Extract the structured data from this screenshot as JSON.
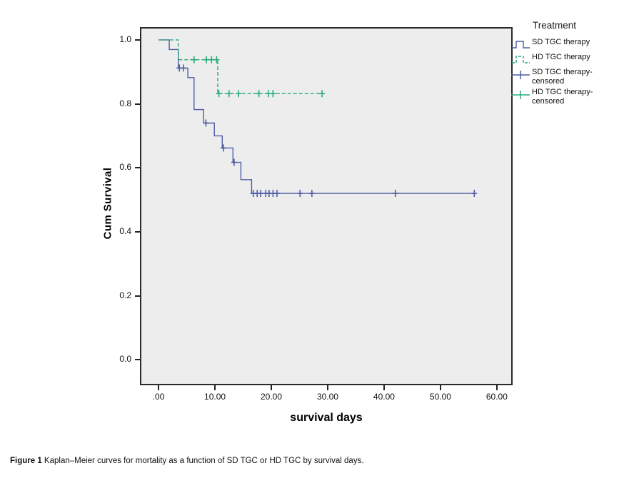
{
  "figure": {
    "caption_prefix": "Figure 1",
    "caption_text": " Kaplan–Meier curves for mortality as a function of SD TGC or HD TGC by survival days."
  },
  "legend": {
    "title": "Treatment",
    "items": [
      {
        "label": "SD TGC therapy",
        "type": "step",
        "color": "#4e5ca3",
        "dashed": false
      },
      {
        "label": "HD TGC therapy",
        "type": "step",
        "color": "#27ab78",
        "dashed": true
      },
      {
        "label": "SD TGC therapy-censored",
        "type": "censor",
        "color": "#4e5ca3",
        "dashed": false
      },
      {
        "label": "HD TGC therapy-censored",
        "type": "censor",
        "color": "#27ab78",
        "dashed": true
      }
    ]
  },
  "chart_data": {
    "type": "line",
    "subtype": "kaplan-meier-step",
    "title": "",
    "xlabel": "survival days",
    "ylabel": "Cum Survival",
    "xlim": [
      -3.3,
      62.8
    ],
    "ylim": [
      -0.08,
      1.04
    ],
    "grid": false,
    "legend_position": "outside-top-right",
    "plot_background": "#ededed",
    "frame_color": "#2b2b2b",
    "x_ticks": [
      {
        "value": 0,
        "label": ".00"
      },
      {
        "value": 10,
        "label": "10.00"
      },
      {
        "value": 20,
        "label": "20.00"
      },
      {
        "value": 30,
        "label": "30.00"
      },
      {
        "value": 40,
        "label": "40.00"
      },
      {
        "value": 50,
        "label": "50.00"
      },
      {
        "value": 60,
        "label": "60.00"
      }
    ],
    "y_ticks": [
      {
        "value": 1.0,
        "label": "1.0"
      },
      {
        "value": 0.8,
        "label": "0.8"
      },
      {
        "value": 0.6,
        "label": "0.6"
      },
      {
        "value": 0.4,
        "label": "0.4"
      },
      {
        "value": 0.2,
        "label": "0.2"
      },
      {
        "value": 0.0,
        "label": "0.0"
      }
    ],
    "series": [
      {
        "name": "SD TGC therapy",
        "color": "#4e5ca3",
        "dashed": false,
        "steps": [
          [
            0,
            1.0
          ],
          [
            1.9,
            0.97
          ],
          [
            3.5,
            0.912
          ],
          [
            5.2,
            0.882
          ],
          [
            6.3,
            0.782
          ],
          [
            8.0,
            0.74
          ],
          [
            9.9,
            0.7
          ],
          [
            11.3,
            0.662
          ],
          [
            13.2,
            0.617
          ],
          [
            14.6,
            0.563
          ],
          [
            16.5,
            0.52
          ],
          [
            56,
            0.52
          ]
        ],
        "censored": [
          [
            3.7,
            0.912
          ],
          [
            4.4,
            0.912
          ],
          [
            8.4,
            0.74
          ],
          [
            11.5,
            0.662
          ],
          [
            13.4,
            0.617
          ],
          [
            16.8,
            0.52
          ],
          [
            17.5,
            0.52
          ],
          [
            18.1,
            0.52
          ],
          [
            19.0,
            0.52
          ],
          [
            19.6,
            0.52
          ],
          [
            20.3,
            0.52
          ],
          [
            21.0,
            0.52
          ],
          [
            25.1,
            0.52
          ],
          [
            27.2,
            0.52
          ],
          [
            42,
            0.52
          ],
          [
            56,
            0.52
          ]
        ]
      },
      {
        "name": "HD TGC therapy",
        "color": "#27ab78",
        "dashed": true,
        "steps": [
          [
            0,
            1.0
          ],
          [
            3.5,
            0.938
          ],
          [
            10.5,
            0.832
          ],
          [
            29.5,
            0.832
          ]
        ],
        "censored": [
          [
            6.3,
            0.938
          ],
          [
            8.5,
            0.938
          ],
          [
            9.4,
            0.938
          ],
          [
            10.3,
            0.938
          ],
          [
            10.7,
            0.832
          ],
          [
            12.5,
            0.832
          ],
          [
            14.2,
            0.832
          ],
          [
            17.8,
            0.832
          ],
          [
            19.5,
            0.832
          ],
          [
            20.3,
            0.832
          ],
          [
            29.0,
            0.832
          ]
        ]
      }
    ]
  }
}
